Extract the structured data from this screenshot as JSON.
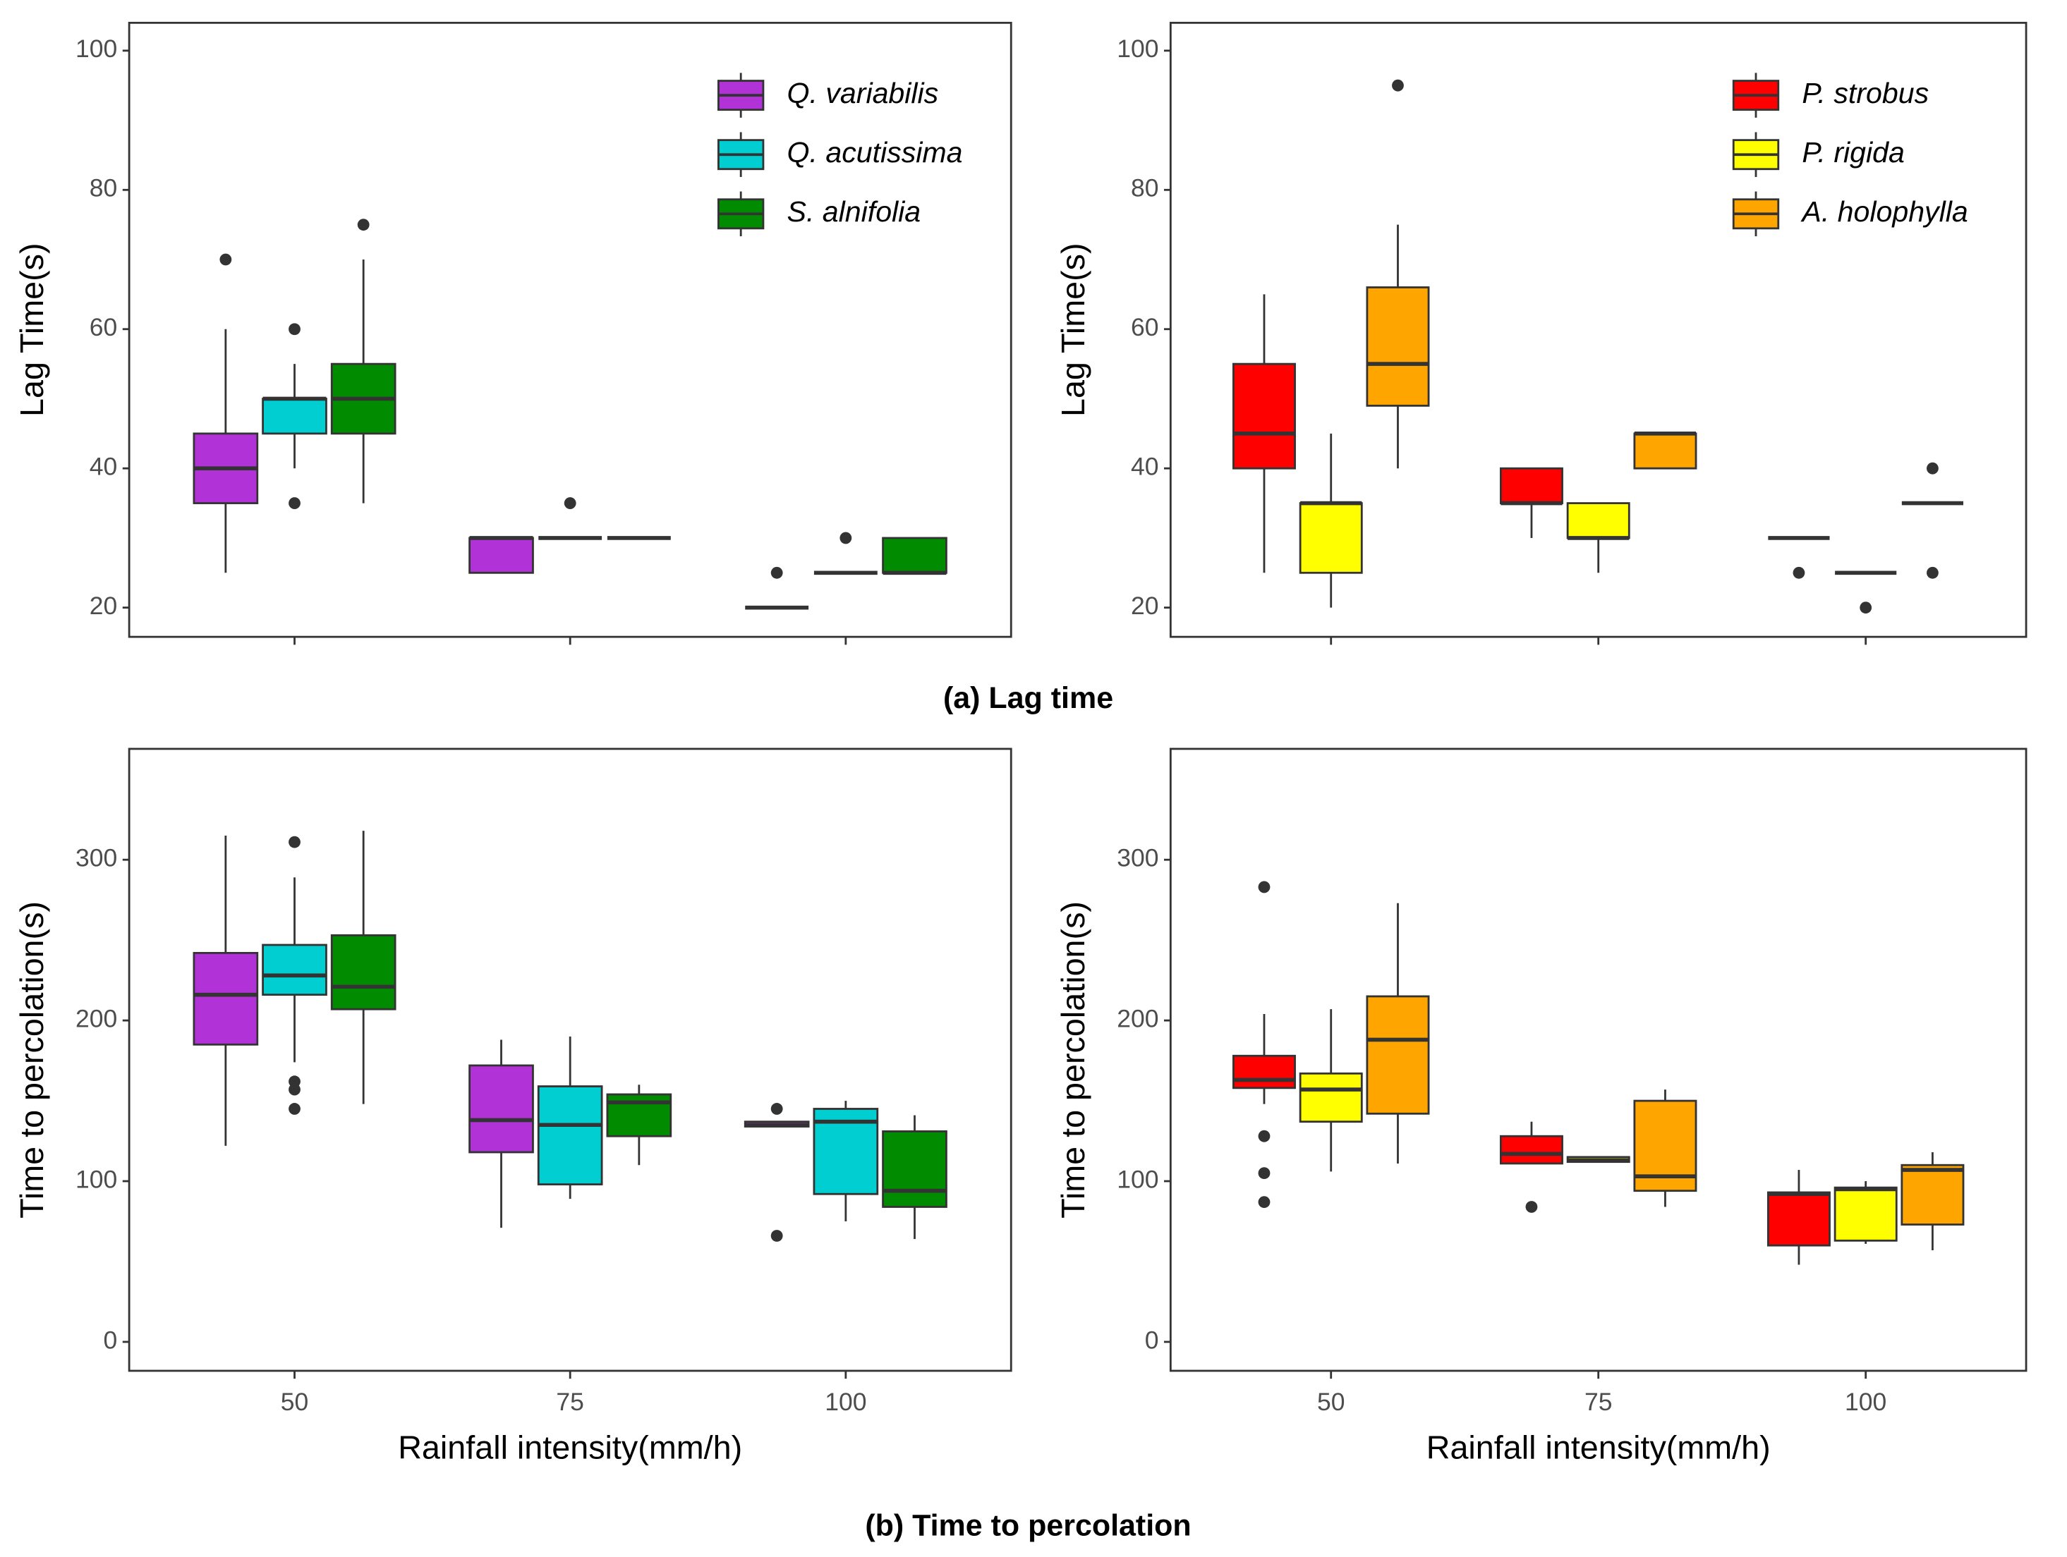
{
  "chart_data": [
    {
      "type": "box",
      "ylabel": "Lag Time(s)",
      "categories": [
        null,
        null,
        null
      ],
      "ylim": [
        15.8,
        104
      ],
      "yticks": [
        20,
        40,
        60,
        80,
        100
      ],
      "legend": "top right",
      "series": [
        {
          "name": "Q. variabilis",
          "color": "#b132d6",
          "boxes": [
            {
              "min": 25,
              "q1": 35,
              "median": 40,
              "q3": 45,
              "max": 60,
              "outliers": [
                70
              ]
            },
            {
              "min": 25,
              "q1": 25,
              "median": 30,
              "q3": 30,
              "max": 30,
              "outliers": []
            },
            {
              "min": 20,
              "q1": 20,
              "median": 20,
              "q3": 20,
              "max": 20,
              "outliers": [
                25
              ]
            }
          ]
        },
        {
          "name": "Q. acutissima",
          "color": "#00ced1",
          "boxes": [
            {
              "min": 40,
              "q1": 45,
              "median": 50,
              "q3": 50,
              "max": 55,
              "outliers": [
                60,
                35
              ]
            },
            {
              "min": 30,
              "q1": 30,
              "median": 30,
              "q3": 30,
              "max": 30,
              "outliers": [
                35
              ]
            },
            {
              "min": 25,
              "q1": 25,
              "median": 25,
              "q3": 25,
              "max": 25,
              "outliers": [
                30
              ]
            }
          ]
        },
        {
          "name": "S. alnifolia",
          "color": "#008b00",
          "boxes": [
            {
              "min": 35,
              "q1": 45,
              "median": 50,
              "q3": 55,
              "max": 70,
              "outliers": [
                75
              ]
            },
            {
              "min": 30,
              "q1": 30,
              "median": 30,
              "q3": 30,
              "max": 30,
              "outliers": []
            },
            {
              "min": 25,
              "q1": 25,
              "median": 25,
              "q3": 30,
              "max": 30,
              "outliers": []
            }
          ]
        }
      ]
    },
    {
      "type": "box",
      "ylabel": "Lag Time(s)",
      "categories": [
        null,
        null,
        null
      ],
      "ylim": [
        15.8,
        104
      ],
      "yticks": [
        20,
        40,
        60,
        80,
        100
      ],
      "legend": "top right",
      "series": [
        {
          "name": "P. strobus",
          "color": "#ff0000",
          "boxes": [
            {
              "min": 25,
              "q1": 40,
              "median": 45,
              "q3": 55,
              "max": 65,
              "outliers": []
            },
            {
              "min": 30,
              "q1": 35,
              "median": 35,
              "q3": 40,
              "max": 40,
              "outliers": []
            },
            {
              "min": 30,
              "q1": 30,
              "median": 30,
              "q3": 30,
              "max": 30,
              "outliers": [
                25
              ]
            }
          ]
        },
        {
          "name": "P. rigida",
          "color": "#ffff00",
          "boxes": [
            {
              "min": 20,
              "q1": 25,
              "median": 35,
              "q3": 35,
              "max": 45,
              "outliers": []
            },
            {
              "min": 25,
              "q1": 30,
              "median": 30,
              "q3": 35,
              "max": 35,
              "outliers": []
            },
            {
              "min": 25,
              "q1": 25,
              "median": 25,
              "q3": 25,
              "max": 25,
              "outliers": [
                20
              ]
            }
          ]
        },
        {
          "name": "A. holophylla",
          "color": "#ffa500",
          "boxes": [
            {
              "min": 40,
              "q1": 49,
              "median": 55,
              "q3": 66,
              "max": 75,
              "outliers": [
                95
              ]
            },
            {
              "min": 40,
              "q1": 40,
              "median": 45,
              "q3": 45,
              "max": 45,
              "outliers": []
            },
            {
              "min": 35,
              "q1": 35,
              "median": 35,
              "q3": 35,
              "max": 35,
              "outliers": [
                40,
                25
              ]
            }
          ]
        }
      ]
    },
    {
      "type": "box",
      "ylabel": "Time to percolation(s)",
      "xlabel": "Rainfall intensity(mm/h)",
      "categories": [
        "50",
        "75",
        "100"
      ],
      "ylim": [
        -18,
        369
      ],
      "yticks": [
        0,
        100,
        200,
        300
      ],
      "series": [
        {
          "color": "#b132d6",
          "boxes": [
            {
              "min": 122,
              "q1": 185,
              "median": 216,
              "q3": 242,
              "max": 315,
              "outliers": []
            },
            {
              "min": 71,
              "q1": 118,
              "median": 138,
              "q3": 172,
              "max": 188,
              "outliers": []
            },
            {
              "min": 134,
              "q1": 134,
              "median": 135,
              "q3": 137,
              "max": 137,
              "outliers": [
                145,
                66
              ]
            }
          ]
        },
        {
          "color": "#00ced1",
          "boxes": [
            {
              "min": 174,
              "q1": 216,
              "median": 228,
              "q3": 247,
              "max": 289,
              "outliers": [
                311,
                162,
                157,
                145
              ]
            },
            {
              "min": 89,
              "q1": 98,
              "median": 135,
              "q3": 159,
              "max": 190,
              "outliers": []
            },
            {
              "min": 75,
              "q1": 92,
              "median": 137,
              "q3": 145,
              "max": 150,
              "outliers": []
            }
          ]
        },
        {
          "color": "#008b00",
          "boxes": [
            {
              "min": 148,
              "q1": 207,
              "median": 221,
              "q3": 253,
              "max": 318,
              "outliers": []
            },
            {
              "min": 110,
              "q1": 128,
              "median": 149,
              "q3": 154,
              "max": 160,
              "outliers": []
            },
            {
              "min": 64,
              "q1": 84,
              "median": 94,
              "q3": 131,
              "max": 141,
              "outliers": []
            }
          ]
        }
      ]
    },
    {
      "type": "box",
      "ylabel": "Time to percolation(s)",
      "xlabel": "Rainfall intensity(mm/h)",
      "categories": [
        "50",
        "75",
        "100"
      ],
      "ylim": [
        -18,
        369
      ],
      "yticks": [
        0,
        100,
        200,
        300
      ],
      "series": [
        {
          "color": "#ff0000",
          "boxes": [
            {
              "min": 148,
              "q1": 158,
              "median": 163,
              "q3": 178,
              "max": 204,
              "outliers": [
                283,
                128,
                105,
                87
              ]
            },
            {
              "min": 111,
              "q1": 111,
              "median": 117,
              "q3": 128,
              "max": 137,
              "outliers": [
                84
              ]
            },
            {
              "min": 48,
              "q1": 60,
              "median": 92,
              "q3": 93,
              "max": 107,
              "outliers": []
            }
          ]
        },
        {
          "color": "#ffff00",
          "boxes": [
            {
              "min": 106,
              "q1": 137,
              "median": 157,
              "q3": 167,
              "max": 207,
              "outliers": []
            },
            {
              "min": 112,
              "q1": 112,
              "median": 113,
              "q3": 115,
              "max": 115,
              "outliers": []
            },
            {
              "min": 61,
              "q1": 63,
              "median": 95,
              "q3": 96,
              "max": 100,
              "outliers": []
            }
          ]
        },
        {
          "color": "#ffa500",
          "boxes": [
            {
              "min": 111,
              "q1": 142,
              "median": 188,
              "q3": 215,
              "max": 273,
              "outliers": []
            },
            {
              "min": 84,
              "q1": 94,
              "median": 103,
              "q3": 150,
              "max": 157,
              "outliers": []
            },
            {
              "min": 57,
              "q1": 73,
              "median": 107,
              "q3": 110,
              "max": 118,
              "outliers": []
            }
          ]
        }
      ]
    }
  ],
  "captions": [
    "(a) Lag time",
    "(b) Time to percolation"
  ]
}
